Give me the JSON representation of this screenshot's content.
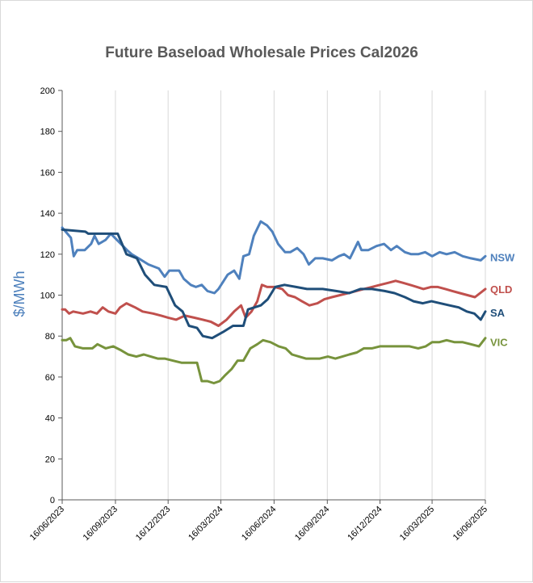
{
  "chart_data": {
    "type": "line",
    "title": "Future Baseload Wholesale Prices Cal2026",
    "xlabel": "",
    "ylabel": "$/MWh",
    "ylim": [
      0,
      200
    ],
    "yticks": [
      "0",
      "20",
      "40",
      "60",
      "80",
      "100",
      "120",
      "140",
      "160",
      "180",
      "200"
    ],
    "xlim": [
      "2023-06-16",
      "2025-06-16"
    ],
    "xticks": [
      "16/06/2023",
      "16/09/2023",
      "16/12/2023",
      "16/03/2024",
      "16/06/2024",
      "16/09/2024",
      "16/12/2024",
      "16/03/2025",
      "16/06/2025"
    ],
    "grid": "vertical",
    "legend": "inline labels at right end of each series",
    "series": [
      {
        "name": "NSW",
        "color": "#4f81bd",
        "points": [
          [
            "2023-06-16",
            133
          ],
          [
            "2023-06-22",
            131
          ],
          [
            "2023-07-01",
            128
          ],
          [
            "2023-07-06",
            119
          ],
          [
            "2023-07-12",
            122
          ],
          [
            "2023-07-25",
            122
          ],
          [
            "2023-08-05",
            125
          ],
          [
            "2023-08-11",
            129
          ],
          [
            "2023-08-18",
            125
          ],
          [
            "2023-08-30",
            127
          ],
          [
            "2023-09-08",
            130
          ],
          [
            "2023-09-22",
            126
          ],
          [
            "2023-10-06",
            122
          ],
          [
            "2023-10-14",
            120
          ],
          [
            "2023-10-26",
            118
          ],
          [
            "2023-11-12",
            115
          ],
          [
            "2023-11-30",
            113
          ],
          [
            "2023-12-10",
            109
          ],
          [
            "2023-12-18",
            112
          ],
          [
            "2024-01-04",
            112
          ],
          [
            "2024-01-12",
            108
          ],
          [
            "2024-01-24",
            105
          ],
          [
            "2024-02-02",
            104
          ],
          [
            "2024-02-12",
            105
          ],
          [
            "2024-02-22",
            102
          ],
          [
            "2024-03-05",
            101
          ],
          [
            "2024-03-12",
            103
          ],
          [
            "2024-03-28",
            110
          ],
          [
            "2024-04-08",
            112
          ],
          [
            "2024-04-17",
            108
          ],
          [
            "2024-04-24",
            119
          ],
          [
            "2024-05-04",
            120
          ],
          [
            "2024-05-12",
            129
          ],
          [
            "2024-05-24",
            136
          ],
          [
            "2024-06-04",
            134
          ],
          [
            "2024-06-13",
            131
          ],
          [
            "2024-06-23",
            125
          ],
          [
            "2024-07-05",
            121
          ],
          [
            "2024-07-14",
            121
          ],
          [
            "2024-07-26",
            123
          ],
          [
            "2024-08-06",
            120
          ],
          [
            "2024-08-15",
            115
          ],
          [
            "2024-08-26",
            118
          ],
          [
            "2024-09-08",
            118
          ],
          [
            "2024-09-24",
            117
          ],
          [
            "2024-10-06",
            119
          ],
          [
            "2024-10-15",
            120
          ],
          [
            "2024-10-25",
            118
          ],
          [
            "2024-11-08",
            126
          ],
          [
            "2024-11-14",
            122
          ],
          [
            "2024-11-26",
            122
          ],
          [
            "2024-12-10",
            124
          ],
          [
            "2024-12-23",
            125
          ],
          [
            "2025-01-04",
            122
          ],
          [
            "2025-01-14",
            124
          ],
          [
            "2025-01-28",
            121
          ],
          [
            "2025-02-08",
            120
          ],
          [
            "2025-02-20",
            120
          ],
          [
            "2025-03-04",
            121
          ],
          [
            "2025-03-16",
            119
          ],
          [
            "2025-03-29",
            121
          ],
          [
            "2025-04-10",
            120
          ],
          [
            "2025-04-24",
            121
          ],
          [
            "2025-05-08",
            119
          ],
          [
            "2025-05-22",
            118
          ],
          [
            "2025-06-08",
            117
          ],
          [
            "2025-06-16",
            119
          ]
        ]
      },
      {
        "name": "QLD",
        "color": "#c0504d",
        "points": [
          [
            "2023-06-16",
            93
          ],
          [
            "2023-06-21",
            93
          ],
          [
            "2023-06-28",
            91
          ],
          [
            "2023-07-05",
            92
          ],
          [
            "2023-07-22",
            91
          ],
          [
            "2023-08-04",
            92
          ],
          [
            "2023-08-15",
            91
          ],
          [
            "2023-08-25",
            94
          ],
          [
            "2023-09-04",
            92
          ],
          [
            "2023-09-16",
            91
          ],
          [
            "2023-09-24",
            94
          ],
          [
            "2023-10-05",
            96
          ],
          [
            "2023-10-20",
            94
          ],
          [
            "2023-11-02",
            92
          ],
          [
            "2023-11-20",
            91
          ],
          [
            "2023-12-04",
            90
          ],
          [
            "2023-12-16",
            89
          ],
          [
            "2023-12-30",
            88
          ],
          [
            "2024-01-14",
            90
          ],
          [
            "2024-01-30",
            89
          ],
          [
            "2024-02-14",
            88
          ],
          [
            "2024-02-28",
            87
          ],
          [
            "2024-03-12",
            85
          ],
          [
            "2024-03-26",
            88
          ],
          [
            "2024-04-08",
            92
          ],
          [
            "2024-04-20",
            95
          ],
          [
            "2024-04-28",
            89
          ],
          [
            "2024-05-08",
            92
          ],
          [
            "2024-05-18",
            97
          ],
          [
            "2024-05-26",
            105
          ],
          [
            "2024-06-04",
            104
          ],
          [
            "2024-06-17",
            104
          ],
          [
            "2024-06-30",
            103
          ],
          [
            "2024-07-10",
            100
          ],
          [
            "2024-07-22",
            99
          ],
          [
            "2024-08-03",
            97
          ],
          [
            "2024-08-16",
            95
          ],
          [
            "2024-08-30",
            96
          ],
          [
            "2024-09-11",
            98
          ],
          [
            "2024-09-24",
            99
          ],
          [
            "2024-10-08",
            100
          ],
          [
            "2024-10-22",
            101
          ],
          [
            "2024-11-05",
            102
          ],
          [
            "2024-11-18",
            103
          ],
          [
            "2024-12-02",
            104
          ],
          [
            "2024-12-16",
            105
          ],
          [
            "2024-12-30",
            106
          ],
          [
            "2025-01-12",
            107
          ],
          [
            "2025-01-25",
            106
          ],
          [
            "2025-02-06",
            105
          ],
          [
            "2025-02-18",
            104
          ],
          [
            "2025-03-01",
            103
          ],
          [
            "2025-03-14",
            104
          ],
          [
            "2025-03-26",
            104
          ],
          [
            "2025-04-08",
            103
          ],
          [
            "2025-04-20",
            102
          ],
          [
            "2025-05-03",
            101
          ],
          [
            "2025-05-16",
            100
          ],
          [
            "2025-05-29",
            99
          ],
          [
            "2025-06-16",
            103
          ]
        ]
      },
      {
        "name": "SA",
        "color": "#1f4e79",
        "points": [
          [
            "2023-06-16",
            132
          ],
          [
            "2023-07-26",
            131
          ],
          [
            "2023-07-31",
            130
          ],
          [
            "2023-09-20",
            130
          ],
          [
            "2023-10-05",
            120
          ],
          [
            "2023-10-23",
            118
          ],
          [
            "2023-11-06",
            110
          ],
          [
            "2023-11-22",
            105
          ],
          [
            "2023-12-13",
            104
          ],
          [
            "2023-12-28",
            95
          ],
          [
            "2024-01-10",
            92
          ],
          [
            "2024-01-21",
            85
          ],
          [
            "2024-02-04",
            84
          ],
          [
            "2024-02-14",
            80
          ],
          [
            "2024-03-01",
            79
          ],
          [
            "2024-03-20",
            82
          ],
          [
            "2024-04-06",
            85
          ],
          [
            "2024-04-24",
            85
          ],
          [
            "2024-05-02",
            93
          ],
          [
            "2024-05-24",
            95
          ],
          [
            "2024-06-05",
            98
          ],
          [
            "2024-06-18",
            104
          ],
          [
            "2024-07-04",
            105
          ],
          [
            "2024-07-24",
            104
          ],
          [
            "2024-08-12",
            103
          ],
          [
            "2024-09-08",
            103
          ],
          [
            "2024-10-01",
            102
          ],
          [
            "2024-10-24",
            101
          ],
          [
            "2024-11-12",
            103
          ],
          [
            "2024-12-02",
            103
          ],
          [
            "2024-12-24",
            102
          ],
          [
            "2025-01-10",
            101
          ],
          [
            "2025-01-28",
            99
          ],
          [
            "2025-02-12",
            97
          ],
          [
            "2025-02-28",
            96
          ],
          [
            "2025-03-15",
            97
          ],
          [
            "2025-03-30",
            96
          ],
          [
            "2025-04-15",
            95
          ],
          [
            "2025-05-01",
            94
          ],
          [
            "2025-05-15",
            92
          ],
          [
            "2025-05-28",
            91
          ],
          [
            "2025-06-08",
            88
          ],
          [
            "2025-06-16",
            92
          ]
        ]
      },
      {
        "name": "VIC",
        "color": "#77933c",
        "points": [
          [
            "2023-06-16",
            78
          ],
          [
            "2023-06-23",
            78
          ],
          [
            "2023-06-30",
            79
          ],
          [
            "2023-07-08",
            75
          ],
          [
            "2023-07-22",
            74
          ],
          [
            "2023-08-07",
            74
          ],
          [
            "2023-08-16",
            76
          ],
          [
            "2023-08-30",
            74
          ],
          [
            "2023-09-12",
            75
          ],
          [
            "2023-09-26",
            73
          ],
          [
            "2023-10-08",
            71
          ],
          [
            "2023-10-22",
            70
          ],
          [
            "2023-11-04",
            71
          ],
          [
            "2023-11-16",
            70
          ],
          [
            "2023-11-28",
            69
          ],
          [
            "2023-12-10",
            69
          ],
          [
            "2023-12-24",
            68
          ],
          [
            "2024-01-08",
            67
          ],
          [
            "2024-01-22",
            67
          ],
          [
            "2024-02-04",
            67
          ],
          [
            "2024-02-12",
            58
          ],
          [
            "2024-02-22",
            58
          ],
          [
            "2024-03-04",
            57
          ],
          [
            "2024-03-14",
            58
          ],
          [
            "2024-03-24",
            61
          ],
          [
            "2024-04-04",
            64
          ],
          [
            "2024-04-14",
            68
          ],
          [
            "2024-04-24",
            68
          ],
          [
            "2024-05-06",
            74
          ],
          [
            "2024-05-18",
            76
          ],
          [
            "2024-05-28",
            78
          ],
          [
            "2024-06-10",
            77
          ],
          [
            "2024-06-24",
            75
          ],
          [
            "2024-07-06",
            74
          ],
          [
            "2024-07-17",
            71
          ],
          [
            "2024-07-29",
            70
          ],
          [
            "2024-08-10",
            69
          ],
          [
            "2024-08-22",
            69
          ],
          [
            "2024-09-03",
            69
          ],
          [
            "2024-09-17",
            70
          ],
          [
            "2024-09-30",
            69
          ],
          [
            "2024-10-12",
            70
          ],
          [
            "2024-10-24",
            71
          ],
          [
            "2024-11-06",
            72
          ],
          [
            "2024-11-18",
            74
          ],
          [
            "2024-12-02",
            74
          ],
          [
            "2024-12-16",
            75
          ],
          [
            "2025-01-03",
            75
          ],
          [
            "2025-01-20",
            75
          ],
          [
            "2025-02-05",
            75
          ],
          [
            "2025-02-20",
            74
          ],
          [
            "2025-03-05",
            75
          ],
          [
            "2025-03-16",
            77
          ],
          [
            "2025-03-28",
            77
          ],
          [
            "2025-04-10",
            78
          ],
          [
            "2025-04-24",
            77
          ],
          [
            "2025-05-08",
            77
          ],
          [
            "2025-05-22",
            76
          ],
          [
            "2025-06-05",
            75
          ],
          [
            "2025-06-16",
            79
          ]
        ]
      }
    ]
  }
}
